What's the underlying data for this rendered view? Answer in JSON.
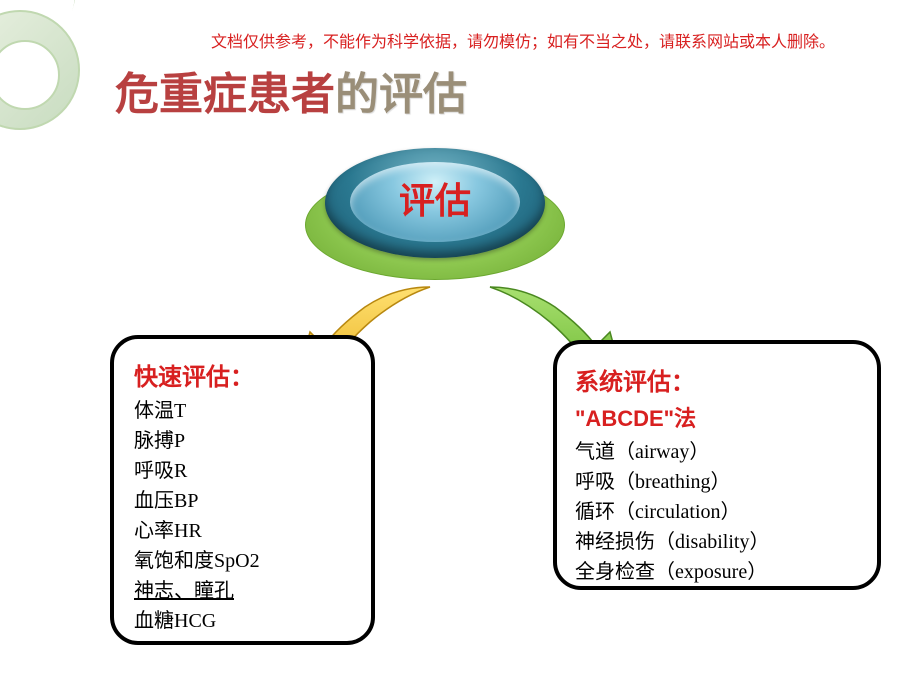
{
  "disclaimer": "文档仅供参考，不能作为科学依据，请勿模仿；如有不当之处，请联系网站或本人删除。",
  "title": {
    "part1": "危重症患者",
    "part2": "的",
    "part3": "评估"
  },
  "center": {
    "label": "评估"
  },
  "leftBox": {
    "title": "快速评估：",
    "items": [
      "体温T",
      "脉搏P",
      "呼吸R",
      "血压BP",
      "心率HR",
      "氧饱和度SpO2",
      "神志、瞳孔",
      "血糖HCG"
    ],
    "underlinedIndex": 6
  },
  "rightBox": {
    "title": "系统评估：",
    "subtitle": "\"ABCDE\"法",
    "items": [
      "气道（airway）",
      "呼吸（breathing）",
      "循环（circulation）",
      "神经损伤（disability）",
      "全身检查（exposure）"
    ]
  },
  "colors": {
    "red": "#d82020",
    "titleRed": "#b84040",
    "titleGray": "#9a8e78",
    "arrowYellowLight": "#ffe070",
    "arrowYellowDark": "#e8b020",
    "arrowGreenLight": "#a8e070",
    "arrowGreenDark": "#6cb830",
    "boxBorder": "#000000"
  },
  "arrows": {
    "left": {
      "fillLight": "#ffe070",
      "fillDark": "#e8b020",
      "stroke": "#b88810"
    },
    "right": {
      "fillLight": "#a8e070",
      "fillDark": "#6cb830",
      "stroke": "#4a8820"
    }
  }
}
